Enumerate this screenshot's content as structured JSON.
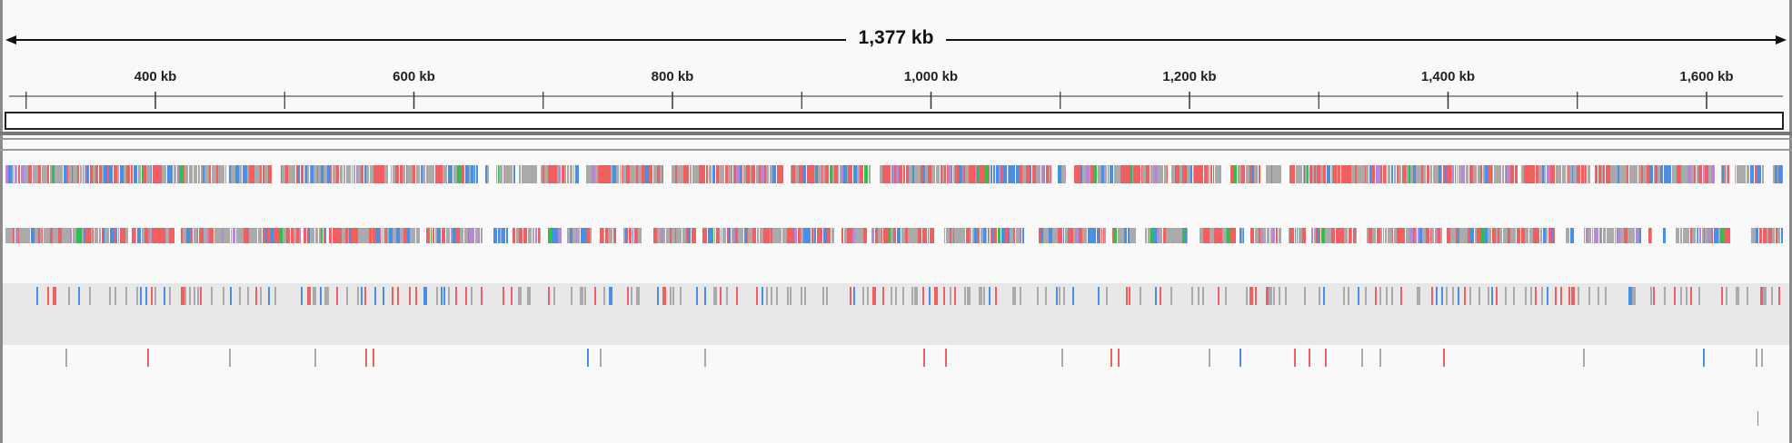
{
  "ruler": {
    "span_label": "1,377 kb",
    "ticks": [
      {
        "kb": 400,
        "label": "400 kb"
      },
      {
        "kb": 600,
        "label": "600 kb"
      },
      {
        "kb": 800,
        "label": "800 kb"
      },
      {
        "kb": 1000,
        "label": "1,000 kb"
      },
      {
        "kb": 1200,
        "label": "1,200 kb"
      },
      {
        "kb": 1400,
        "label": "1,400 kb"
      },
      {
        "kb": 1600,
        "label": "1,600 kb"
      }
    ],
    "minor_ticks_kb": [
      300,
      500,
      700,
      900,
      1100,
      1300,
      1500
    ]
  },
  "colors": {
    "gray": "#aaaaaa",
    "red": "#f06060",
    "blue": "#4a8fe6",
    "green": "#2ec04a",
    "purple": "#b48ad8",
    "band_bg": "#e8e8e8",
    "ruler_line": "#111111"
  },
  "tracks": {
    "track_1": {
      "style": "dense",
      "has_background_band": false
    },
    "track_2": {
      "style": "dense-gapped",
      "has_background_band": false
    },
    "track_3": {
      "style": "sparse",
      "has_background_band": true
    },
    "track_4": {
      "style": "very-sparse",
      "has_background_band": false
    }
  }
}
